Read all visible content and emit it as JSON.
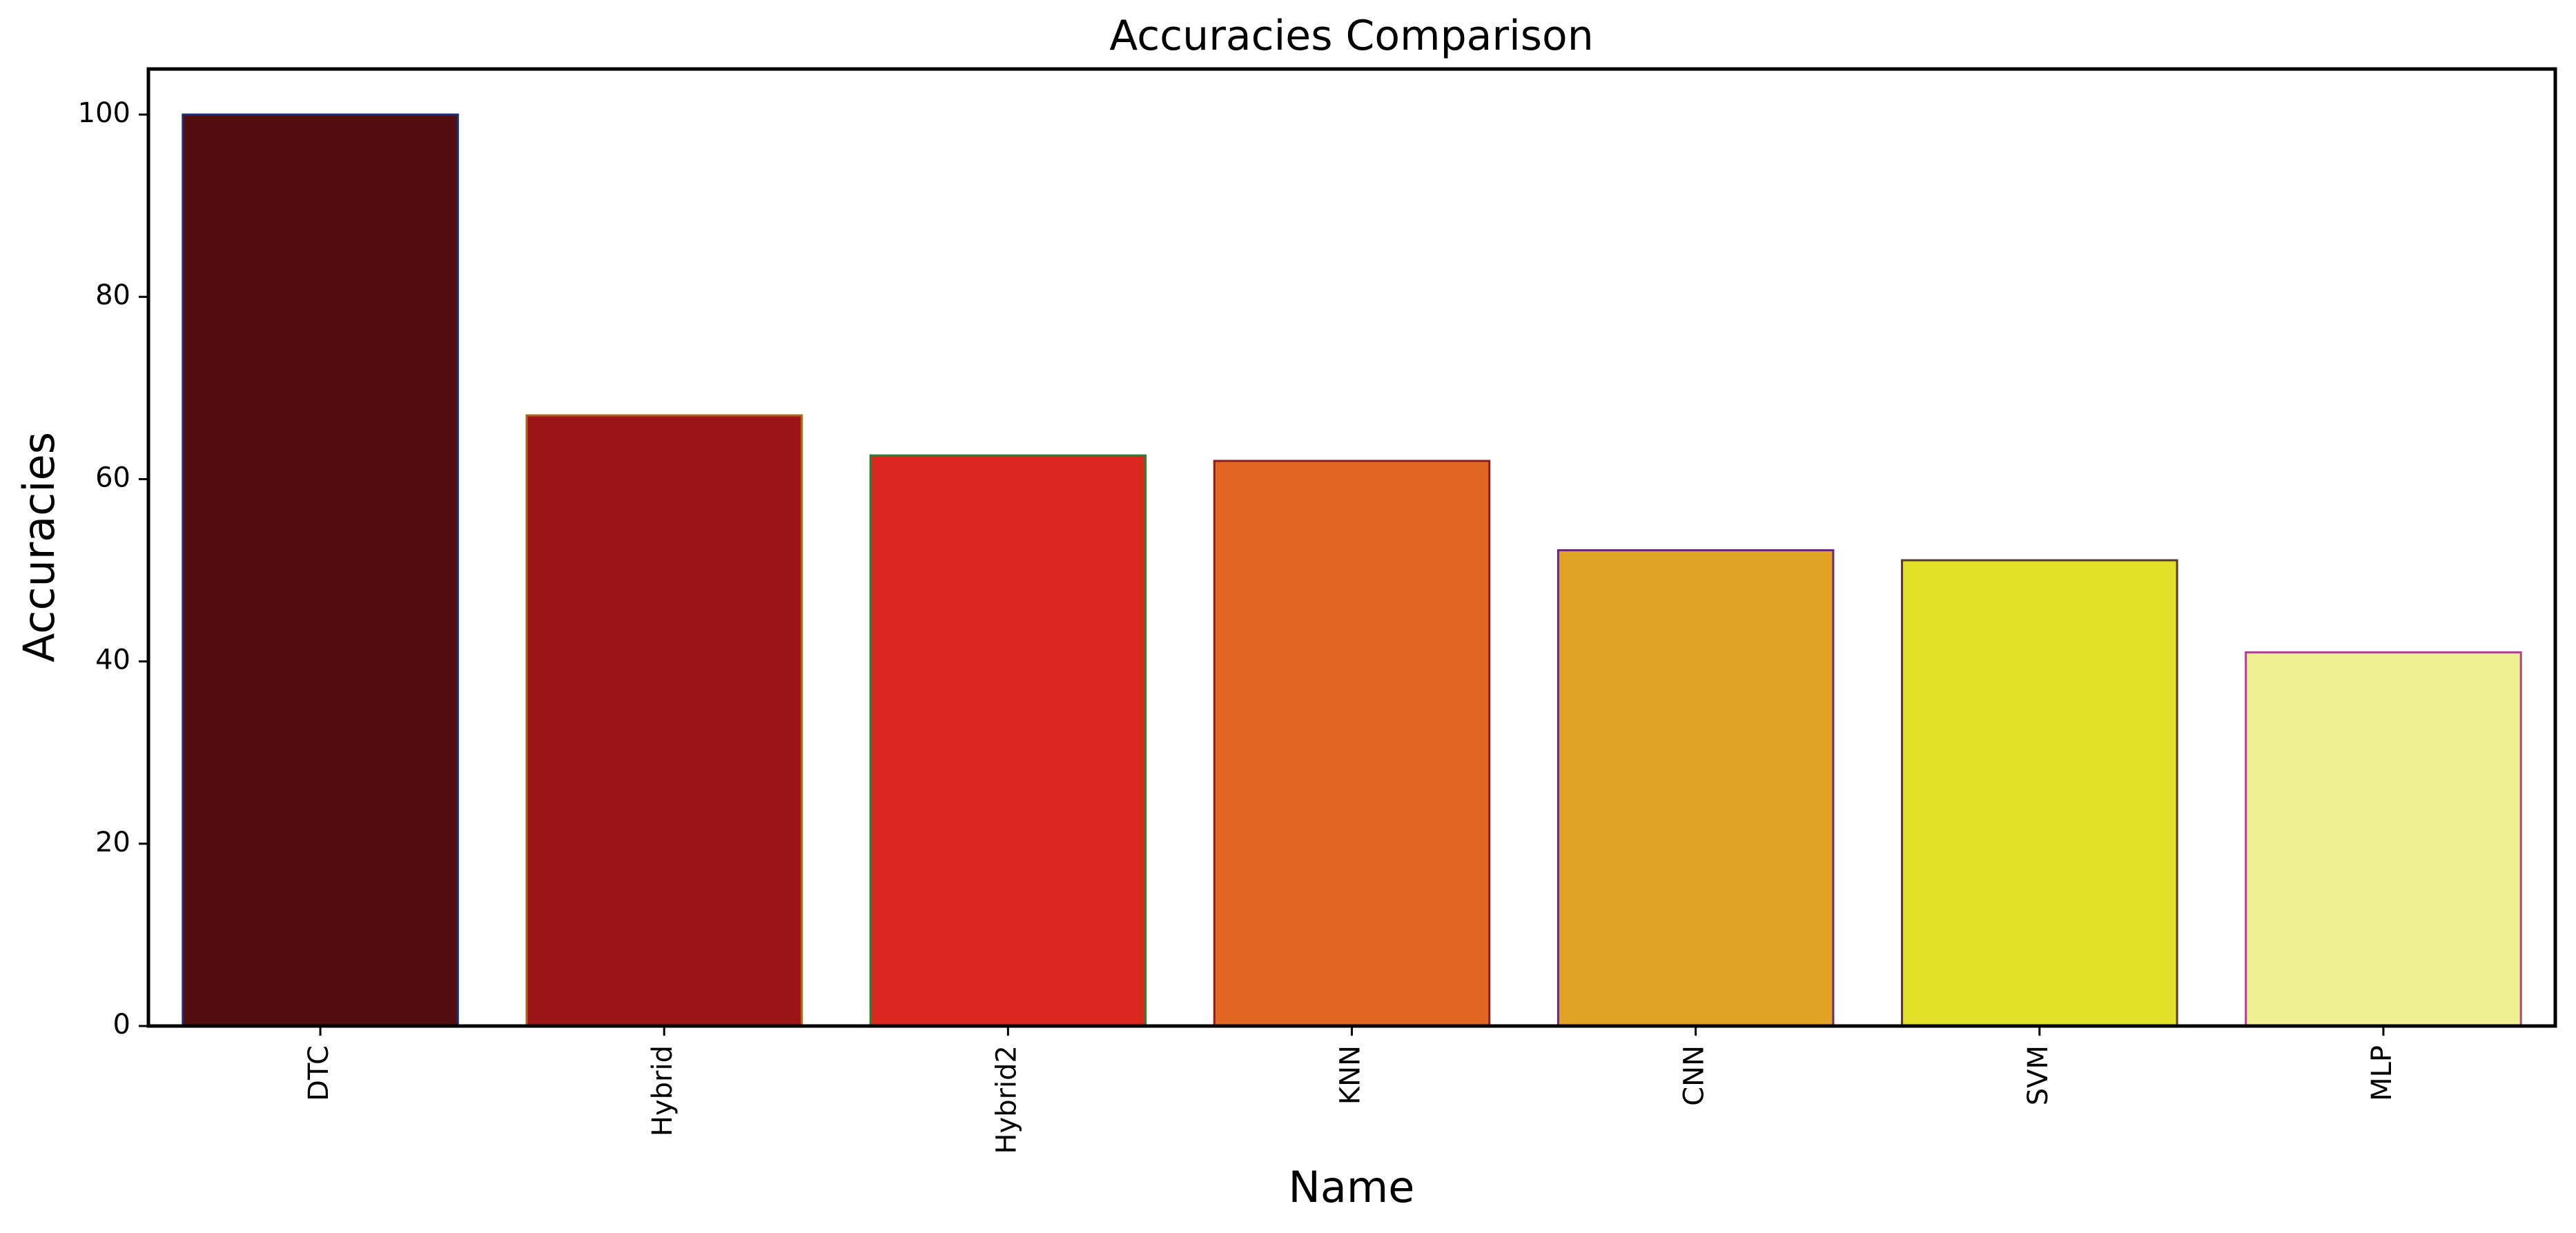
{
  "chart_data": {
    "type": "bar",
    "title": "Accuracies Comparison",
    "xlabel": "Name",
    "ylabel": "Accuracies",
    "categories": [
      "DTC",
      "Hybrid",
      "Hybrid2",
      "KNN",
      "CNN",
      "SVM",
      "MLP"
    ],
    "values": [
      100.0,
      67.0,
      62.6,
      62.0,
      52.2,
      51.1,
      41.0
    ],
    "ylim": [
      0,
      105
    ],
    "yticks": [
      0,
      20,
      40,
      60,
      80,
      100
    ],
    "grid": false,
    "legend": "none",
    "bar_colors": [
      "#540d0e",
      "#9b1518",
      "#dd2822",
      "#e06621",
      "#e0a323",
      "#e0e128",
      "#eff092"
    ],
    "edge_colors": [
      "#1b2e7a",
      "#b5651d",
      "#2e7d32",
      "#8b1e1e",
      "#6a2a7a",
      "#5a3a2a",
      "#b0418c"
    ]
  }
}
